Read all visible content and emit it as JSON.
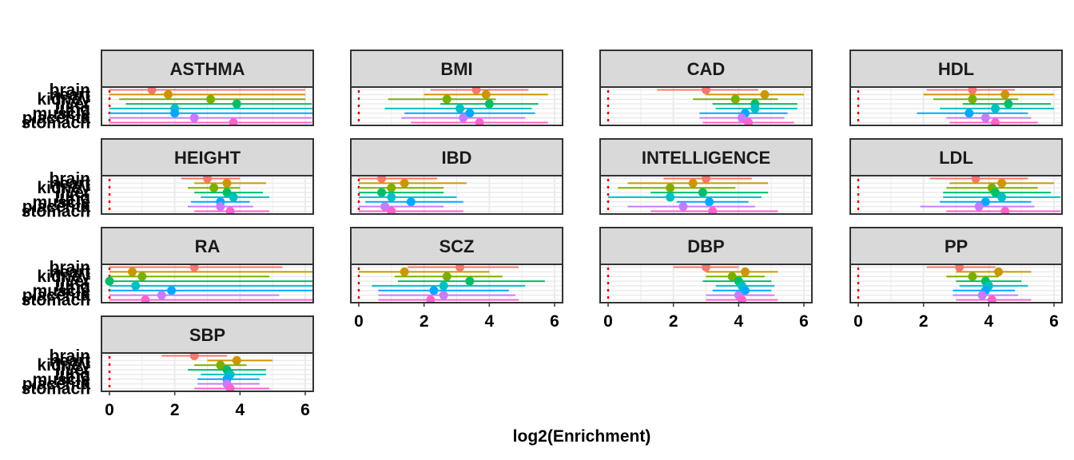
{
  "chart_data": {
    "type": "forest",
    "xlabel": "log2(Enrichment)",
    "ylabel": "",
    "xlim": [
      0,
      6
    ],
    "x_ticks": [
      0,
      2,
      4,
      6
    ],
    "reference_line": 0,
    "grid": true,
    "legend": "none",
    "tissues": [
      "brain",
      "heart",
      "kidney",
      "liver",
      "lung",
      "muscle",
      "placenta",
      "stomach"
    ],
    "colors": [
      "#F8766D",
      "#CD9600",
      "#7CAE00",
      "#00BE67",
      "#00BFC4",
      "#00A9FF",
      "#C77CFF",
      "#FF61CC"
    ],
    "facets": [
      {
        "title": "ASTHMA",
        "estimates": [
          1.3,
          1.8,
          3.1,
          3.9,
          2.0,
          2.0,
          2.6,
          3.8
        ],
        "lower": [
          0.0,
          0.0,
          0.3,
          0.5,
          0.0,
          0.0,
          0.0,
          0.0
        ],
        "upper": [
          6.0,
          6.0,
          6.0,
          6.2,
          6.3,
          6.3,
          6.2,
          6.2
        ]
      },
      {
        "title": "BMI",
        "estimates": [
          3.6,
          3.9,
          2.7,
          4.0,
          3.1,
          3.4,
          3.2,
          3.7
        ],
        "lower": [
          2.2,
          2.0,
          0.9,
          2.5,
          0.8,
          1.4,
          1.3,
          1.6
        ],
        "upper": [
          5.2,
          5.8,
          4.2,
          5.5,
          5.3,
          5.4,
          5.1,
          5.8
        ]
      },
      {
        "title": "CAD",
        "estimates": [
          3.0,
          4.8,
          3.9,
          4.5,
          4.5,
          4.2,
          4.1,
          4.3
        ],
        "lower": [
          1.5,
          3.0,
          2.6,
          3.2,
          3.3,
          2.8,
          2.8,
          2.9
        ],
        "upper": [
          4.6,
          6.0,
          5.2,
          5.8,
          5.8,
          5.5,
          5.4,
          5.7
        ]
      },
      {
        "title": "HDL",
        "estimates": [
          3.5,
          4.5,
          3.5,
          4.6,
          4.2,
          3.4,
          3.9,
          4.2
        ],
        "lower": [
          2.1,
          2.0,
          2.3,
          3.2,
          2.5,
          1.8,
          2.7,
          2.8
        ],
        "upper": [
          4.8,
          6.0,
          4.9,
          5.9,
          6.0,
          5.2,
          5.3,
          5.5
        ]
      },
      {
        "title": "HEIGHT",
        "estimates": [
          3.0,
          3.6,
          3.2,
          3.6,
          3.8,
          3.4,
          3.4,
          3.7
        ],
        "lower": [
          2.2,
          2.6,
          2.4,
          2.6,
          2.8,
          2.5,
          2.4,
          2.6
        ],
        "upper": [
          4.0,
          4.8,
          4.0,
          4.7,
          4.9,
          4.3,
          4.4,
          4.9
        ]
      },
      {
        "title": "IBD",
        "estimates": [
          0.7,
          1.4,
          1.0,
          0.7,
          1.0,
          1.6,
          0.8,
          1.0
        ],
        "lower": [
          0.0,
          0.0,
          0.0,
          0.0,
          0.0,
          0.2,
          0.0,
          0.0
        ],
        "upper": [
          2.4,
          3.3,
          2.6,
          2.6,
          3.0,
          3.2,
          2.6,
          3.2
        ]
      },
      {
        "title": "INTELLIGENCE",
        "estimates": [
          3.0,
          2.6,
          1.9,
          2.9,
          1.9,
          3.1,
          2.3,
          3.2
        ],
        "lower": [
          1.7,
          0.6,
          0.3,
          1.3,
          0.0,
          2.1,
          0.6,
          1.3
        ],
        "upper": [
          4.4,
          4.9,
          3.9,
          4.9,
          4.7,
          4.3,
          4.5,
          5.2
        ]
      },
      {
        "title": "LDL",
        "estimates": [
          3.6,
          4.4,
          4.1,
          4.2,
          4.4,
          3.9,
          3.7,
          4.5
        ],
        "lower": [
          2.2,
          2.8,
          2.7,
          2.6,
          2.6,
          2.5,
          1.9,
          2.7
        ],
        "upper": [
          5.2,
          6.0,
          5.5,
          5.9,
          6.2,
          5.3,
          5.4,
          6.2
        ]
      },
      {
        "title": "RA",
        "estimates": [
          2.6,
          0.7,
          1.0,
          0.0,
          0.8,
          1.9,
          1.6,
          1.1
        ],
        "lower": [
          0.0,
          0.0,
          0.0,
          0.0,
          0.0,
          0.0,
          0.0,
          0.0
        ],
        "upper": [
          5.3,
          6.3,
          4.9,
          6.3,
          6.3,
          6.3,
          5.2,
          6.3
        ]
      },
      {
        "title": "SCZ",
        "estimates": [
          3.1,
          1.4,
          2.7,
          3.4,
          2.6,
          2.3,
          2.6,
          2.2
        ],
        "lower": [
          1.5,
          0.0,
          1.1,
          1.2,
          0.4,
          0.6,
          0.6,
          0.6
        ],
        "upper": [
          4.9,
          4.0,
          4.4,
          5.7,
          5.1,
          4.6,
          4.8,
          4.9
        ]
      },
      {
        "title": "DBP",
        "estimates": [
          3.0,
          4.2,
          3.8,
          4.0,
          4.1,
          4.2,
          4.0,
          4.1
        ],
        "lower": [
          2.0,
          3.0,
          3.0,
          2.9,
          3.3,
          3.2,
          3.0,
          3.0
        ],
        "upper": [
          4.0,
          5.2,
          4.8,
          5.0,
          5.1,
          5.0,
          5.1,
          5.2
        ]
      },
      {
        "title": "PP",
        "estimates": [
          3.1,
          4.3,
          3.5,
          3.9,
          4.0,
          3.9,
          3.8,
          4.1
        ],
        "lower": [
          2.1,
          3.0,
          2.7,
          3.0,
          3.1,
          2.9,
          2.9,
          3.0
        ],
        "upper": [
          4.2,
          5.3,
          4.3,
          5.0,
          5.2,
          4.8,
          4.9,
          5.3
        ]
      },
      {
        "title": "SBP",
        "estimates": [
          2.6,
          3.9,
          3.4,
          3.6,
          3.7,
          3.6,
          3.6,
          3.7
        ],
        "lower": [
          1.6,
          3.0,
          2.6,
          2.4,
          2.8,
          2.7,
          2.7,
          2.6
        ],
        "upper": [
          3.6,
          5.0,
          4.2,
          4.8,
          4.8,
          4.6,
          4.6,
          4.9
        ]
      }
    ]
  }
}
